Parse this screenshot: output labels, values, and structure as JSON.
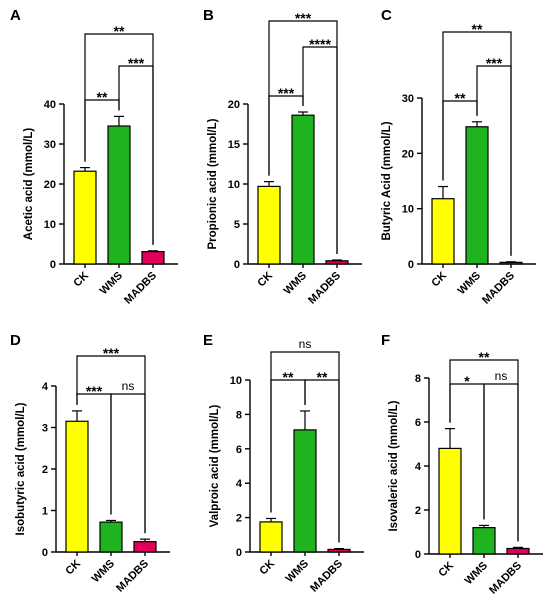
{
  "figure": {
    "categories": [
      "CK",
      "WMS",
      "MADBS"
    ],
    "colors": {
      "CK": "#ffff00",
      "WMS": "#1fb31f",
      "MADBS": "#e0005a"
    }
  },
  "chart_data": [
    {
      "type": "bar",
      "panel": "A",
      "ylabel": "Acetic acid (mmol/L)",
      "categories": [
        "CK",
        "WMS",
        "MADBS"
      ],
      "values": [
        23.2,
        34.5,
        3.1
      ],
      "errors": [
        0.9,
        2.4,
        0.2
      ],
      "ylim": [
        0,
        40
      ],
      "yticks": [
        0,
        10,
        20,
        30,
        40
      ],
      "significance": [
        {
          "from": 0,
          "to": 1,
          "label": "**"
        },
        {
          "from": 1,
          "to": 2,
          "label": "***"
        },
        {
          "from": 0,
          "to": 2,
          "label": "**"
        }
      ]
    },
    {
      "type": "bar",
      "panel": "B",
      "ylabel": "Propionic acid (mmol/L)",
      "categories": [
        "CK",
        "WMS",
        "MADBS"
      ],
      "values": [
        9.7,
        18.6,
        0.4
      ],
      "errors": [
        0.6,
        0.4,
        0.1
      ],
      "ylim": [
        0,
        20
      ],
      "yticks": [
        0,
        5,
        10,
        15,
        20
      ],
      "significance": [
        {
          "from": 0,
          "to": 1,
          "label": "***"
        },
        {
          "from": 1,
          "to": 2,
          "label": "****"
        },
        {
          "from": 0,
          "to": 2,
          "label": "***"
        }
      ]
    },
    {
      "type": "bar",
      "panel": "C",
      "ylabel": "Butyric Acid (mmol/L)",
      "categories": [
        "CK",
        "WMS",
        "MADBS"
      ],
      "values": [
        11.8,
        24.8,
        0.3
      ],
      "errors": [
        2.2,
        0.9,
        0.1
      ],
      "ylim": [
        0,
        30
      ],
      "yticks": [
        0,
        10,
        20,
        30
      ],
      "significance": [
        {
          "from": 0,
          "to": 1,
          "label": "**"
        },
        {
          "from": 1,
          "to": 2,
          "label": "***"
        },
        {
          "from": 0,
          "to": 2,
          "label": "**"
        }
      ]
    },
    {
      "type": "bar",
      "panel": "D",
      "ylabel": "Isobutyric acid (mmol/L)",
      "categories": [
        "CK",
        "WMS",
        "MADBS"
      ],
      "values": [
        3.15,
        0.72,
        0.25
      ],
      "errors": [
        0.25,
        0.04,
        0.06
      ],
      "ylim": [
        0,
        4
      ],
      "yticks": [
        0,
        1,
        2,
        3,
        4
      ],
      "significance": [
        {
          "from": 0,
          "to": 1,
          "label": "***"
        },
        {
          "from": 1,
          "to": 2,
          "label": "ns"
        },
        {
          "from": 0,
          "to": 2,
          "label": "***"
        }
      ]
    },
    {
      "type": "bar",
      "panel": "E",
      "ylabel": "Valproic acid (mmol/L)",
      "categories": [
        "CK",
        "WMS",
        "MADBS"
      ],
      "values": [
        1.75,
        7.1,
        0.15
      ],
      "errors": [
        0.2,
        1.1,
        0.05
      ],
      "ylim": [
        0,
        10
      ],
      "yticks": [
        0,
        2,
        4,
        6,
        8,
        10
      ],
      "significance": [
        {
          "from": 0,
          "to": 1,
          "label": "**"
        },
        {
          "from": 1,
          "to": 2,
          "label": "**"
        },
        {
          "from": 0,
          "to": 2,
          "label": "ns"
        }
      ]
    },
    {
      "type": "bar",
      "panel": "F",
      "ylabel": "Isovaleric acid (mmol/L)",
      "categories": [
        "CK",
        "WMS",
        "MADBS"
      ],
      "values": [
        4.8,
        1.2,
        0.25
      ],
      "errors": [
        0.9,
        0.1,
        0.05
      ],
      "ylim": [
        0,
        8
      ],
      "yticks": [
        0,
        2,
        4,
        6,
        8
      ],
      "significance": [
        {
          "from": 0,
          "to": 1,
          "label": "*"
        },
        {
          "from": 1,
          "to": 2,
          "label": "ns"
        },
        {
          "from": 0,
          "to": 2,
          "label": "**"
        }
      ]
    }
  ]
}
